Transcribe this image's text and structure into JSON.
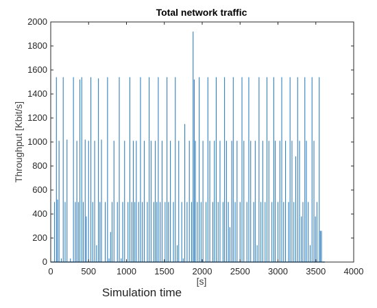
{
  "chart_data": {
    "type": "line",
    "title": "Total network traffic",
    "xlabel": "[s]",
    "ylabel": "Throughput [Kbit/s]",
    "caption": "Simulation time",
    "xlim": [
      0,
      4000
    ],
    "ylim": [
      0,
      2000
    ],
    "xticks": [
      0,
      500,
      1000,
      1500,
      2000,
      2500,
      3000,
      3500,
      4000
    ],
    "yticks": [
      0,
      200,
      400,
      600,
      800,
      1000,
      1200,
      1400,
      1600,
      1800,
      2000
    ],
    "grid": false,
    "line_color": "#2f7fc1",
    "series": [
      {
        "spikes": [
          {
            "x": 50,
            "y": 500
          },
          {
            "x": 75,
            "y": 1540
          },
          {
            "x": 90,
            "y": 520
          },
          {
            "x": 110,
            "y": 1010
          },
          {
            "x": 140,
            "y": 30
          },
          {
            "x": 165,
            "y": 1540
          },
          {
            "x": 190,
            "y": 500
          },
          {
            "x": 215,
            "y": 1020
          },
          {
            "x": 260,
            "y": 30
          },
          {
            "x": 300,
            "y": 1540
          },
          {
            "x": 325,
            "y": 500
          },
          {
            "x": 345,
            "y": 1010
          },
          {
            "x": 365,
            "y": 500
          },
          {
            "x": 385,
            "y": 1520
          },
          {
            "x": 410,
            "y": 1540
          },
          {
            "x": 430,
            "y": 500
          },
          {
            "x": 455,
            "y": 1020
          },
          {
            "x": 470,
            "y": 380
          },
          {
            "x": 500,
            "y": 1010
          },
          {
            "x": 530,
            "y": 1540
          },
          {
            "x": 555,
            "y": 500
          },
          {
            "x": 580,
            "y": 1010
          },
          {
            "x": 605,
            "y": 140
          },
          {
            "x": 630,
            "y": 1530
          },
          {
            "x": 650,
            "y": 500
          },
          {
            "x": 670,
            "y": 1020
          },
          {
            "x": 720,
            "y": 500
          },
          {
            "x": 750,
            "y": 1540
          },
          {
            "x": 770,
            "y": 30
          },
          {
            "x": 790,
            "y": 250
          },
          {
            "x": 810,
            "y": 500
          },
          {
            "x": 835,
            "y": 1010
          },
          {
            "x": 880,
            "y": 500
          },
          {
            "x": 905,
            "y": 1540
          },
          {
            "x": 930,
            "y": 30
          },
          {
            "x": 950,
            "y": 500
          },
          {
            "x": 975,
            "y": 1010
          },
          {
            "x": 1020,
            "y": 500
          },
          {
            "x": 1045,
            "y": 1540
          },
          {
            "x": 1070,
            "y": 500
          },
          {
            "x": 1090,
            "y": 1010
          },
          {
            "x": 1110,
            "y": 500
          },
          {
            "x": 1130,
            "y": 1010
          },
          {
            "x": 1160,
            "y": 500
          },
          {
            "x": 1185,
            "y": 1540
          },
          {
            "x": 1210,
            "y": 500
          },
          {
            "x": 1235,
            "y": 1010
          },
          {
            "x": 1275,
            "y": 500
          },
          {
            "x": 1300,
            "y": 1540
          },
          {
            "x": 1325,
            "y": 1010
          },
          {
            "x": 1360,
            "y": 500
          },
          {
            "x": 1380,
            "y": 1010
          },
          {
            "x": 1400,
            "y": 500
          },
          {
            "x": 1420,
            "y": 1540
          },
          {
            "x": 1445,
            "y": 500
          },
          {
            "x": 1470,
            "y": 1010
          },
          {
            "x": 1510,
            "y": 500
          },
          {
            "x": 1535,
            "y": 1540
          },
          {
            "x": 1555,
            "y": 500
          },
          {
            "x": 1580,
            "y": 1010
          },
          {
            "x": 1620,
            "y": 500
          },
          {
            "x": 1645,
            "y": 1540
          },
          {
            "x": 1670,
            "y": 140
          },
          {
            "x": 1690,
            "y": 1010
          },
          {
            "x": 1730,
            "y": 500
          },
          {
            "x": 1750,
            "y": 30
          },
          {
            "x": 1770,
            "y": 1150
          },
          {
            "x": 1800,
            "y": 500
          },
          {
            "x": 1830,
            "y": 1010
          },
          {
            "x": 1860,
            "y": 500
          },
          {
            "x": 1880,
            "y": 1920
          },
          {
            "x": 1895,
            "y": 1520
          },
          {
            "x": 1910,
            "y": 1010
          },
          {
            "x": 1935,
            "y": 500
          },
          {
            "x": 1960,
            "y": 1540
          },
          {
            "x": 1985,
            "y": 500
          },
          {
            "x": 2010,
            "y": 1010
          },
          {
            "x": 2050,
            "y": 500
          },
          {
            "x": 2075,
            "y": 1540
          },
          {
            "x": 2100,
            "y": 1010
          },
          {
            "x": 2140,
            "y": 500
          },
          {
            "x": 2160,
            "y": 1010
          },
          {
            "x": 2185,
            "y": 1540
          },
          {
            "x": 2210,
            "y": 500
          },
          {
            "x": 2235,
            "y": 1010
          },
          {
            "x": 2275,
            "y": 500
          },
          {
            "x": 2295,
            "y": 1540
          },
          {
            "x": 2320,
            "y": 1010
          },
          {
            "x": 2345,
            "y": 500
          },
          {
            "x": 2365,
            "y": 290
          },
          {
            "x": 2390,
            "y": 1010
          },
          {
            "x": 2410,
            "y": 1540
          },
          {
            "x": 2435,
            "y": 500
          },
          {
            "x": 2460,
            "y": 1010
          },
          {
            "x": 2500,
            "y": 500
          },
          {
            "x": 2525,
            "y": 1540
          },
          {
            "x": 2550,
            "y": 1010
          },
          {
            "x": 2590,
            "y": 500
          },
          {
            "x": 2615,
            "y": 1540
          },
          {
            "x": 2640,
            "y": 1010
          },
          {
            "x": 2680,
            "y": 500
          },
          {
            "x": 2700,
            "y": 1010
          },
          {
            "x": 2725,
            "y": 140
          },
          {
            "x": 2750,
            "y": 1540
          },
          {
            "x": 2775,
            "y": 500
          },
          {
            "x": 2800,
            "y": 1010
          },
          {
            "x": 2830,
            "y": 500
          },
          {
            "x": 2855,
            "y": 1540
          },
          {
            "x": 2880,
            "y": 1010
          },
          {
            "x": 2920,
            "y": 500
          },
          {
            "x": 2945,
            "y": 1540
          },
          {
            "x": 2965,
            "y": 1010
          },
          {
            "x": 3000,
            "y": 500
          },
          {
            "x": 3025,
            "y": 1010
          },
          {
            "x": 3050,
            "y": 1540
          },
          {
            "x": 3075,
            "y": 500
          },
          {
            "x": 3100,
            "y": 1010
          },
          {
            "x": 3140,
            "y": 500
          },
          {
            "x": 3160,
            "y": 1540
          },
          {
            "x": 3185,
            "y": 1010
          },
          {
            "x": 3210,
            "y": 500
          },
          {
            "x": 3235,
            "y": 880
          },
          {
            "x": 3260,
            "y": 1540
          },
          {
            "x": 3285,
            "y": 1010
          },
          {
            "x": 3310,
            "y": 380
          },
          {
            "x": 3330,
            "y": 500
          },
          {
            "x": 3355,
            "y": 1540
          },
          {
            "x": 3375,
            "y": 1010
          },
          {
            "x": 3400,
            "y": 500
          },
          {
            "x": 3425,
            "y": 140
          },
          {
            "x": 3450,
            "y": 1540
          },
          {
            "x": 3475,
            "y": 1010
          },
          {
            "x": 3495,
            "y": 380
          },
          {
            "x": 3515,
            "y": 500
          },
          {
            "x": 3545,
            "y": 1540
          },
          {
            "x": 3560,
            "y": 260
          },
          {
            "x": 3575,
            "y": 260
          }
        ],
        "end_x": 3620
      }
    ]
  }
}
